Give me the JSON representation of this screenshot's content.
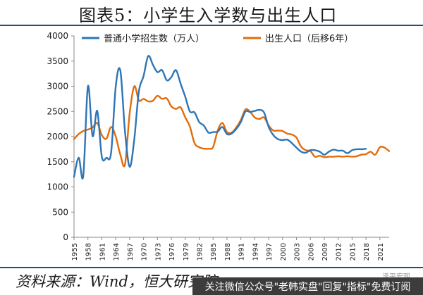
{
  "figure": {
    "title": "图表5：小学生入学数与出生人口",
    "source": "资料来源：Wind，恒大研究院",
    "watermark": "泽平宏观",
    "banner": "关注微信公众号\"老韩实盘\"回复\"指标\"免费订阅"
  },
  "colors": {
    "blue": "#2e75b6",
    "orange": "#e36c0a",
    "axis": "#888888",
    "text": "#1a1a1a"
  },
  "chart_data": {
    "type": "line",
    "title": "",
    "xlabel": "",
    "ylabel": "",
    "ylim": [
      0,
      4000
    ],
    "yticks": [
      0,
      500,
      1000,
      1500,
      2000,
      2500,
      3000,
      3500,
      4000
    ],
    "xlim": [
      1955,
      2023
    ],
    "xticks": [
      "1955",
      "1958",
      "1961",
      "1964",
      "1967",
      "1970",
      "1973",
      "1976",
      "1979",
      "1982",
      "1985",
      "1988",
      "1991",
      "1994",
      "1997",
      "2000",
      "2003",
      "2006",
      "2009",
      "2012",
      "2015",
      "2018",
      "2021"
    ],
    "grid": false,
    "legend_position": "top",
    "series": [
      {
        "name": "普通小学招生数（万人）",
        "color": "#2e75b6",
        "x": [
          1955,
          1956,
          1957,
          1958,
          1959,
          1960,
          1961,
          1962,
          1963,
          1964,
          1965,
          1966,
          1967,
          1968,
          1969,
          1970,
          1971,
          1972,
          1973,
          1974,
          1975,
          1976,
          1977,
          1978,
          1979,
          1980,
          1981,
          1982,
          1983,
          1984,
          1985,
          1986,
          1987,
          1988,
          1989,
          1990,
          1991,
          1992,
          1993,
          1994,
          1995,
          1996,
          1997,
          1998,
          1999,
          2000,
          2001,
          2002,
          2003,
          2004,
          2005,
          2006,
          2007,
          2008,
          2009,
          2010,
          2011,
          2012,
          2013,
          2014,
          2015,
          2016,
          2017,
          2018
        ],
        "y": [
          1200,
          1580,
          1220,
          3000,
          2010,
          2510,
          1600,
          1580,
          1680,
          3000,
          3310,
          2100,
          1400,
          1950,
          2900,
          3200,
          3600,
          3430,
          3280,
          3320,
          3120,
          3180,
          3320,
          3050,
          2790,
          2500,
          2480,
          2290,
          2220,
          2080,
          2090,
          2100,
          2190,
          2050,
          2060,
          2150,
          2290,
          2500,
          2490,
          2510,
          2530,
          2480,
          2190,
          2030,
          1950,
          1930,
          1940,
          1870,
          1780,
          1700,
          1680,
          1730,
          1730,
          1700,
          1640,
          1700,
          1740,
          1720,
          1720,
          1670,
          1730,
          1750,
          1750,
          1760
        ]
      },
      {
        "name": "出生人口（后移6年）",
        "color": "#e36c0a",
        "x": [
          1955,
          1956,
          1957,
          1958,
          1959,
          1960,
          1961,
          1962,
          1963,
          1964,
          1965,
          1966,
          1967,
          1968,
          1969,
          1970,
          1971,
          1972,
          1973,
          1974,
          1975,
          1976,
          1977,
          1978,
          1979,
          1980,
          1981,
          1982,
          1983,
          1984,
          1985,
          1986,
          1987,
          1988,
          1989,
          1990,
          1991,
          1992,
          1993,
          1994,
          1995,
          1996,
          1997,
          1998,
          1999,
          2000,
          2001,
          2002,
          2003,
          2004,
          2005,
          2006,
          2007,
          2008,
          2009,
          2010,
          2011,
          2012,
          2013,
          2014,
          2015,
          2016,
          2017,
          2018,
          2019,
          2020,
          2021,
          2022,
          2023
        ],
        "y": [
          1950,
          2050,
          2110,
          2140,
          2180,
          2270,
          2030,
          1960,
          2190,
          2000,
          1640,
          1450,
          2460,
          3000,
          2720,
          2750,
          2700,
          2710,
          2810,
          2750,
          2760,
          2600,
          2550,
          2580,
          2380,
          2200,
          1870,
          1790,
          1760,
          1760,
          1790,
          2120,
          2270,
          2090,
          2080,
          2180,
          2330,
          2540,
          2490,
          2380,
          2350,
          2380,
          2220,
          2120,
          2120,
          2110,
          2060,
          2040,
          1980,
          1800,
          1730,
          1710,
          1600,
          1620,
          1590,
          1600,
          1600,
          1610,
          1600,
          1610,
          1600,
          1610,
          1640,
          1650,
          1700,
          1640,
          1790,
          1780,
          1710
        ]
      }
    ]
  }
}
